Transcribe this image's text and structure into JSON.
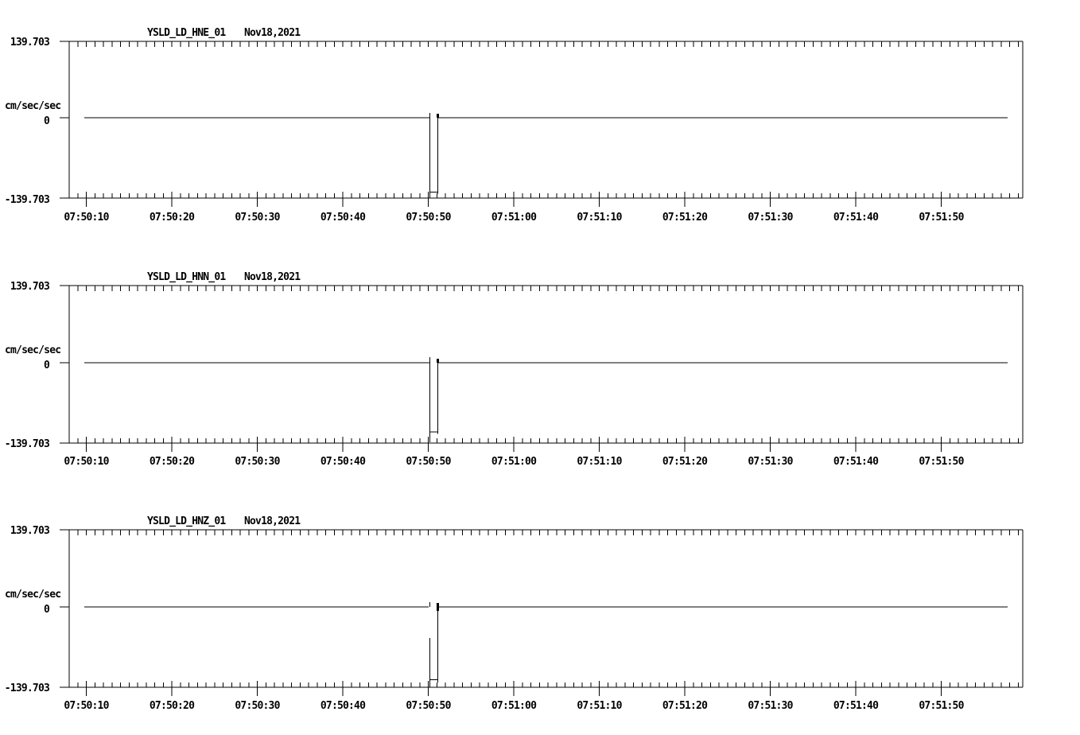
{
  "page_background": "#ffffff",
  "ink_color": "#000000",
  "x_tick_labels": [
    "07:50:10",
    "07:50:20",
    "07:50:30",
    "07:50:40",
    "07:50:50",
    "07:51:00",
    "07:51:10",
    "07:51:20",
    "07:51:30",
    "07:51:40",
    "07:51:50"
  ],
  "chart_data": [
    {
      "type": "line",
      "station": "YSLD_LD_HNE_01",
      "date": "Nov18,2021",
      "units": "cm/sec/sec",
      "y_ticks": {
        "max": "139.703",
        "zero": "0",
        "min": "-139.703"
      },
      "ylim": [
        -139.703,
        139.703
      ],
      "baseline_value": 0,
      "pulse_time": "07:50:50",
      "pulse_min": -139.7,
      "pulse_max": 8.3,
      "pulse_duration_s": 0.93,
      "segments": [
        [
          9.77,
          0,
          50.19,
          0
        ],
        [
          50.19,
          8.3,
          50.19,
          -139.7
        ],
        [
          51.12,
          6.9,
          51.12,
          -132.1
        ],
        [
          50.19,
          -129.6,
          51.12,
          -129.6
        ],
        [
          51.12,
          0,
          117.77,
          0
        ]
      ],
      "thick_segments": [
        [
          51.12,
          6.9,
          51.12,
          0
        ]
      ]
    },
    {
      "type": "line",
      "station": "YSLD_LD_HNN_01",
      "date": "Nov18,2021",
      "units": "cm/sec/sec",
      "y_ticks": {
        "max": "139.703",
        "zero": "0",
        "min": "-139.703"
      },
      "ylim": [
        -139.703,
        139.703
      ],
      "baseline_value": 0,
      "pulse_time": "07:50:50",
      "pulse_min": -138.0,
      "pulse_max": 9.7,
      "pulse_duration_s": 0.93,
      "segments": [
        [
          9.77,
          0,
          50.19,
          0
        ],
        [
          50.19,
          9.7,
          50.19,
          -138.0
        ],
        [
          51.12,
          6.9,
          51.12,
          -124.0
        ],
        [
          50.19,
          -120.0,
          51.12,
          -120.0
        ],
        [
          51.12,
          0,
          117.77,
          0
        ]
      ],
      "thick_segments": [
        [
          51.12,
          6.9,
          51.12,
          0
        ]
      ]
    },
    {
      "type": "line",
      "station": "YSLD_LD_HNZ_01",
      "date": "Nov18,2021",
      "units": "cm/sec/sec",
      "y_ticks": {
        "max": "139.703",
        "zero": "0",
        "min": "-139.703"
      },
      "ylim": [
        -139.703,
        139.703
      ],
      "baseline_value": 0,
      "pulse_time": "07:50:50",
      "pulse_min": -139.7,
      "pulse_max": 8.3,
      "pulse_duration_s": 0.93,
      "segments": [
        [
          9.77,
          0,
          50.06,
          0
        ],
        [
          50.19,
          8.3,
          50.19,
          0
        ],
        [
          50.19,
          -54.0,
          50.19,
          -139.7
        ],
        [
          51.12,
          6.9,
          51.12,
          -131.4
        ],
        [
          50.19,
          -126.6,
          51.12,
          -126.6
        ],
        [
          51.12,
          0,
          117.77,
          0
        ]
      ],
      "thick_segments": [
        [
          51.12,
          6.9,
          51.12,
          -7.0
        ]
      ]
    }
  ]
}
